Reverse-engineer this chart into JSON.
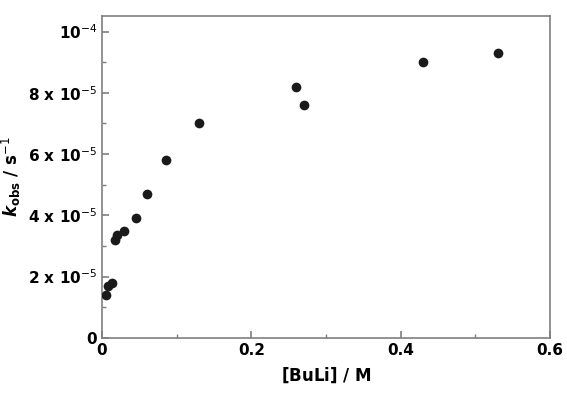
{
  "x": [
    0.005,
    0.008,
    0.013,
    0.018,
    0.02,
    0.03,
    0.045,
    0.06,
    0.085,
    0.13,
    0.26,
    0.27,
    0.43,
    0.53
  ],
  "y": [
    1.4e-05,
    1.7e-05,
    1.8e-05,
    3.2e-05,
    3.35e-05,
    3.5e-05,
    3.9e-05,
    4.7e-05,
    5.8e-05,
    7e-05,
    8.2e-05,
    7.6e-05,
    9e-05,
    9.3e-05
  ],
  "xlim": [
    0,
    0.6
  ],
  "ylim": [
    0,
    0.000105
  ],
  "yticks": [
    0,
    2e-05,
    4e-05,
    6e-05,
    8e-05,
    0.0001
  ],
  "xticks": [
    0,
    0.2,
    0.4,
    0.6
  ],
  "marker_color": "#1a1a1a",
  "marker_size": 7,
  "figure_width": 5.67,
  "figure_height": 4.07,
  "spine_color": "#7f7f7f",
  "tick_color": "#7f7f7f",
  "font_size_ticks": 11,
  "font_size_labels": 12
}
